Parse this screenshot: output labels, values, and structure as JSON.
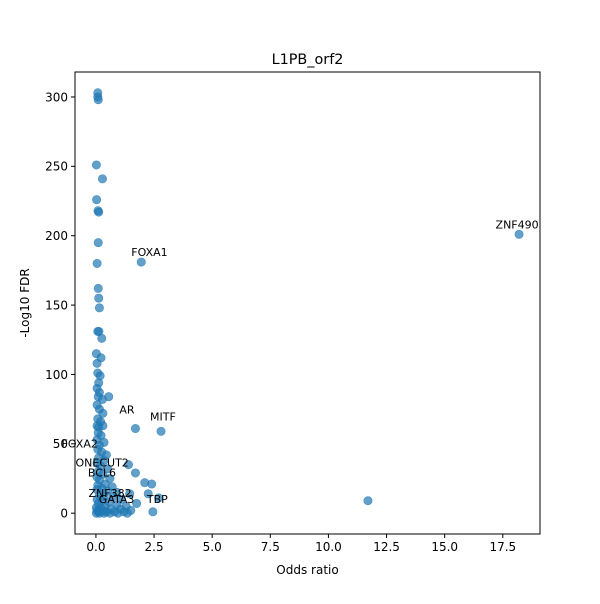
{
  "chart_data": {
    "type": "scatter",
    "title": "L1PB_orf2",
    "xlabel": "Odds ratio",
    "ylabel": "-Log10 FDR",
    "xlim": [
      -0.9,
      19.1
    ],
    "ylim": [
      -15,
      318
    ],
    "xticks": [
      0.0,
      2.5,
      5.0,
      7.5,
      10.0,
      12.5,
      15.0,
      17.5
    ],
    "xtick_labels": [
      "0.0",
      "2.5",
      "5.0",
      "7.5",
      "10.0",
      "12.5",
      "15.0",
      "17.5"
    ],
    "yticks": [
      0,
      50,
      100,
      150,
      200,
      250,
      300
    ],
    "ytick_labels": [
      "0",
      "50",
      "100",
      "150",
      "200",
      "250",
      "300"
    ],
    "grid": false,
    "point_color": "#1f77b4",
    "points": [
      {
        "x": 0.08,
        "y": 303
      },
      {
        "x": 0.08,
        "y": 300
      },
      {
        "x": 0.1,
        "y": 298
      },
      {
        "x": 0.02,
        "y": 251
      },
      {
        "x": 0.28,
        "y": 241
      },
      {
        "x": 0.03,
        "y": 226
      },
      {
        "x": 0.09,
        "y": 218
      },
      {
        "x": 0.12,
        "y": 217
      },
      {
        "x": 0.1,
        "y": 195
      },
      {
        "x": 18.2,
        "y": 201
      },
      {
        "x": 1.95,
        "y": 181
      },
      {
        "x": 0.05,
        "y": 180
      },
      {
        "x": 0.1,
        "y": 162
      },
      {
        "x": 0.12,
        "y": 155
      },
      {
        "x": 0.15,
        "y": 148
      },
      {
        "x": 0.08,
        "y": 131
      },
      {
        "x": 0.13,
        "y": 131
      },
      {
        "x": 0.25,
        "y": 126
      },
      {
        "x": 0.02,
        "y": 115
      },
      {
        "x": 0.22,
        "y": 112
      },
      {
        "x": 0.05,
        "y": 108
      },
      {
        "x": 0.08,
        "y": 101
      },
      {
        "x": 0.18,
        "y": 99
      },
      {
        "x": 0.12,
        "y": 94
      },
      {
        "x": 0.05,
        "y": 90
      },
      {
        "x": 0.15,
        "y": 87
      },
      {
        "x": 0.1,
        "y": 84
      },
      {
        "x": 0.55,
        "y": 84
      },
      {
        "x": 0.28,
        "y": 82
      },
      {
        "x": 0.05,
        "y": 78
      },
      {
        "x": 0.15,
        "y": 75
      },
      {
        "x": 0.3,
        "y": 72
      },
      {
        "x": 0.08,
        "y": 68
      },
      {
        "x": 0.2,
        "y": 66
      },
      {
        "x": 0.05,
        "y": 63
      },
      {
        "x": 0.12,
        "y": 62
      },
      {
        "x": 0.3,
        "y": 63
      },
      {
        "x": 1.7,
        "y": 61
      },
      {
        "x": 2.8,
        "y": 59
      },
      {
        "x": 0.1,
        "y": 58
      },
      {
        "x": 0.22,
        "y": 56
      },
      {
        "x": 0.05,
        "y": 53
      },
      {
        "x": 0.35,
        "y": 51
      },
      {
        "x": 0.15,
        "y": 49
      },
      {
        "x": 0.08,
        "y": 46
      },
      {
        "x": 0.25,
        "y": 44
      },
      {
        "x": 0.45,
        "y": 42
      },
      {
        "x": 0.12,
        "y": 40
      },
      {
        "x": 0.35,
        "y": 38
      },
      {
        "x": 0.05,
        "y": 36
      },
      {
        "x": 1.4,
        "y": 35
      },
      {
        "x": 0.2,
        "y": 34
      },
      {
        "x": 0.5,
        "y": 32
      },
      {
        "x": 0.1,
        "y": 30
      },
      {
        "x": 1.7,
        "y": 29
      },
      {
        "x": 0.3,
        "y": 28
      },
      {
        "x": 0.05,
        "y": 26
      },
      {
        "x": 0.6,
        "y": 25
      },
      {
        "x": 0.15,
        "y": 24
      },
      {
        "x": 2.1,
        "y": 22
      },
      {
        "x": 2.4,
        "y": 21
      },
      {
        "x": 0.4,
        "y": 21
      },
      {
        "x": 0.08,
        "y": 20
      },
      {
        "x": 0.7,
        "y": 19
      },
      {
        "x": 0.25,
        "y": 18
      },
      {
        "x": 0.05,
        "y": 17
      },
      {
        "x": 0.5,
        "y": 16
      },
      {
        "x": 0.9,
        "y": 15
      },
      {
        "x": 2.25,
        "y": 14
      },
      {
        "x": 1.45,
        "y": 14
      },
      {
        "x": 0.15,
        "y": 13
      },
      {
        "x": 0.35,
        "y": 12
      },
      {
        "x": 0.75,
        "y": 12
      },
      {
        "x": 2.7,
        "y": 11
      },
      {
        "x": 0.05,
        "y": 10
      },
      {
        "x": 1.1,
        "y": 10
      },
      {
        "x": 11.7,
        "y": 9
      },
      {
        "x": 0.25,
        "y": 9
      },
      {
        "x": 0.55,
        "y": 8
      },
      {
        "x": 1.75,
        "y": 7
      },
      {
        "x": 0.1,
        "y": 7
      },
      {
        "x": 0.9,
        "y": 6
      },
      {
        "x": 0.4,
        "y": 5
      },
      {
        "x": 1.3,
        "y": 5
      },
      {
        "x": 0.02,
        "y": 4
      },
      {
        "x": 0.2,
        "y": 4
      },
      {
        "x": 0.65,
        "y": 3
      },
      {
        "x": 1.05,
        "y": 3
      },
      {
        "x": 0.05,
        "y": 2
      },
      {
        "x": 0.3,
        "y": 2
      },
      {
        "x": 1.5,
        "y": 2
      },
      {
        "x": 0.1,
        "y": 1
      },
      {
        "x": 0.45,
        "y": 1
      },
      {
        "x": 0.8,
        "y": 1
      },
      {
        "x": 1.2,
        "y": 1
      },
      {
        "x": 2.45,
        "y": 1
      },
      {
        "x": 0.02,
        "y": 0
      },
      {
        "x": 0.15,
        "y": 0
      },
      {
        "x": 0.35,
        "y": 0
      },
      {
        "x": 0.6,
        "y": 0
      },
      {
        "x": 0.95,
        "y": 0
      },
      {
        "x": 1.35,
        "y": 0
      }
    ],
    "annotations": [
      {
        "text": "ZNF490",
        "x": 18.2,
        "y": 201
      },
      {
        "text": "FOXA1",
        "x": 1.95,
        "y": 181
      },
      {
        "text": "AR",
        "x": 1.7,
        "y": 61
      },
      {
        "text": "MITF",
        "x": 2.8,
        "y": 59
      },
      {
        "text": "FOXA2",
        "x": 0.5,
        "y": 51
      },
      {
        "text": "ONECUT2",
        "x": 1.4,
        "y": 35
      },
      {
        "text": "BCL6",
        "x": 0.3,
        "y": 28
      },
      {
        "text": "ZNF382",
        "x": 0.8,
        "y": 16
      },
      {
        "text": "TBP",
        "x": 2.45,
        "y": 1
      },
      {
        "text": "GATA3",
        "x": 0.9,
        "y": 6
      }
    ]
  }
}
